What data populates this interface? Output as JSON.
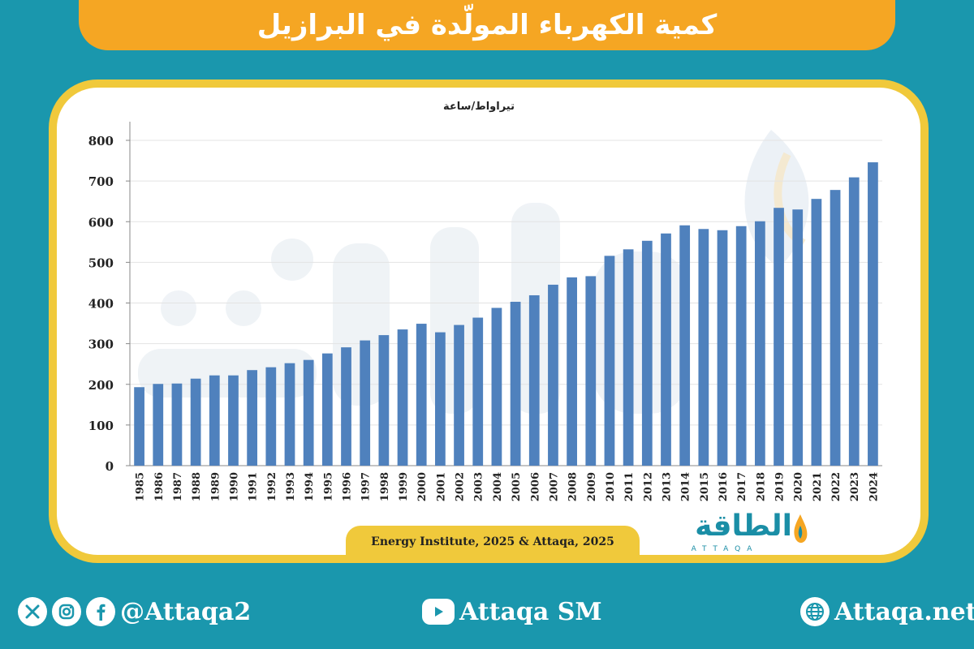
{
  "header": {
    "title": "كمية الكهرباء المولّدة في البرازيل"
  },
  "source": "Energy Institute, 2025 & Attaqa, 2025",
  "logo": {
    "arabic": "الطاقة",
    "latin": "ATTAQA"
  },
  "footer": {
    "social_handle": "@Attaqa2",
    "youtube": "Attaqa SM",
    "website": "Attaqa.net"
  },
  "colors": {
    "bar": "#4f81bd",
    "banner": "#f5a623",
    "frame": "#f0c93b",
    "background": "#1a97ad"
  },
  "chart_data": {
    "type": "bar",
    "title": "",
    "ylabel": "تيراواط/ساعة",
    "xlabel": "",
    "ylim": [
      0,
      800
    ],
    "yticks": [
      0,
      100,
      200,
      300,
      400,
      500,
      600,
      700,
      800
    ],
    "grid": true,
    "categories": [
      "1985",
      "1986",
      "1987",
      "1988",
      "1989",
      "1990",
      "1991",
      "1992",
      "1993",
      "1994",
      "1995",
      "1996",
      "1997",
      "1998",
      "1999",
      "2000",
      "2001",
      "2002",
      "2003",
      "2004",
      "2005",
      "2006",
      "2007",
      "2008",
      "2009",
      "2010",
      "2011",
      "2012",
      "2013",
      "2014",
      "2015",
      "2016",
      "2017",
      "2018",
      "2019",
      "2020",
      "2021",
      "2022",
      "2023",
      "2024"
    ],
    "values": [
      193,
      201,
      202,
      214,
      222,
      222,
      235,
      242,
      252,
      260,
      276,
      291,
      308,
      321,
      335,
      349,
      328,
      346,
      364,
      388,
      403,
      419,
      445,
      463,
      466,
      516,
      532,
      553,
      571,
      591,
      582,
      579,
      589,
      601,
      634,
      630,
      656,
      678,
      709,
      746
    ]
  }
}
